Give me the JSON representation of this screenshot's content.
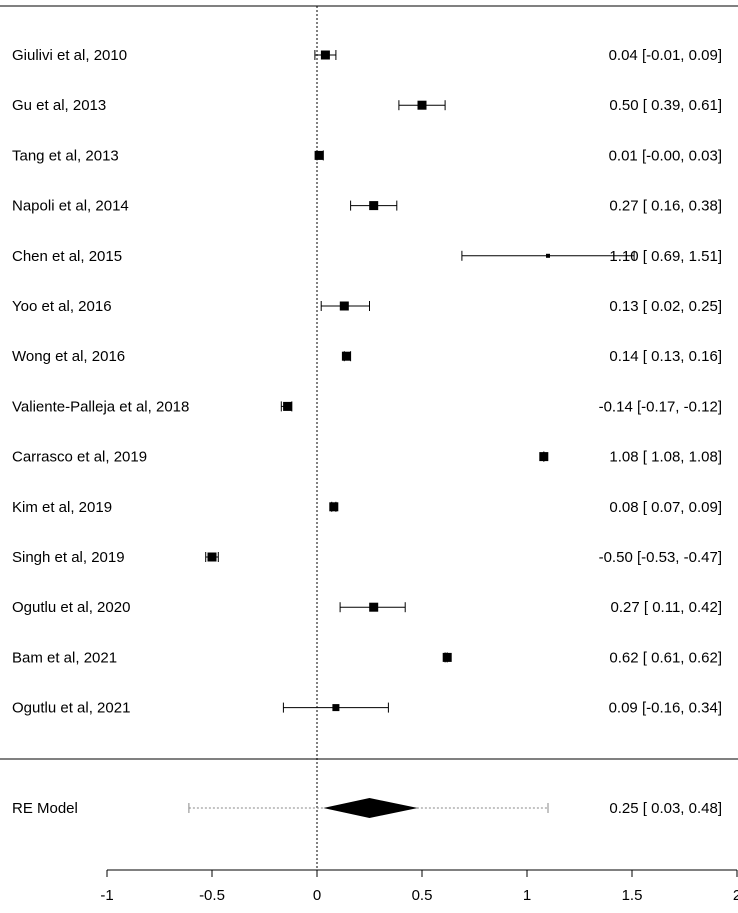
{
  "chart_data": {
    "type": "forest",
    "studies": [
      {
        "label": "Giulivi  et al, 2010",
        "estimate": 0.04,
        "ci": [
          -0.01,
          0.09
        ],
        "ci_text": "0.04 [-0.01,  0.09]",
        "weight": 2
      },
      {
        "label": "Gu et al, 2013",
        "estimate": 0.5,
        "ci": [
          0.39,
          0.61
        ],
        "ci_text": "0.50 [ 0.39,  0.61]",
        "weight": 2
      },
      {
        "label": "Tang et al, 2013",
        "estimate": 0.01,
        "ci": [
          0.0,
          0.03
        ],
        "ci_text": "0.01 [-0.00,  0.03]",
        "weight": 2
      },
      {
        "label": "Napoli  et al, 2014",
        "estimate": 0.27,
        "ci": [
          0.16,
          0.38
        ],
        "ci_text": "0.27 [ 0.16,  0.38]",
        "weight": 2
      },
      {
        "label": "Chen et al, 2015",
        "estimate": 1.1,
        "ci": [
          0.69,
          1.51
        ],
        "ci_text": "1.10 [ 0.69,  1.51]",
        "weight": 0.3
      },
      {
        "label": "Yoo et al, 2016",
        "estimate": 0.13,
        "ci": [
          0.02,
          0.25
        ],
        "ci_text": "0.13 [ 0.02,  0.25]",
        "weight": 2
      },
      {
        "label": "Wong et al, 2016",
        "estimate": 0.14,
        "ci": [
          0.13,
          0.16
        ],
        "ci_text": "0.14 [ 0.13,  0.16]",
        "weight": 2
      },
      {
        "label": "Valiente-Palleja  et al, 2018",
        "estimate": -0.14,
        "ci": [
          -0.17,
          -0.12
        ],
        "ci_text": "-0.14 [-0.17, -0.12]",
        "weight": 2
      },
      {
        "label": "Carrasco et al, 2019",
        "estimate": 1.08,
        "ci": [
          1.08,
          1.08
        ],
        "ci_text": "1.08 [ 1.08,  1.08]",
        "weight": 2
      },
      {
        "label": "Kim et  al, 2019",
        "estimate": 0.08,
        "ci": [
          0.07,
          0.09
        ],
        "ci_text": "0.08 [ 0.07,  0.09]",
        "weight": 2
      },
      {
        "label": "Singh et al, 2019",
        "estimate": -0.5,
        "ci": [
          -0.53,
          -0.47
        ],
        "ci_text": "-0.50 [-0.53, -0.47]",
        "weight": 2
      },
      {
        "label": "Ogutlu et al, 2020",
        "estimate": 0.27,
        "ci": [
          0.11,
          0.42
        ],
        "ci_text": "0.27 [ 0.11,  0.42]",
        "weight": 2
      },
      {
        "label": "Bam et  al, 2021",
        "estimate": 0.62,
        "ci": [
          0.61,
          0.62
        ],
        "ci_text": "0.62 [ 0.61,  0.62]",
        "weight": 2
      },
      {
        "label": "Ogutlu  et al, 2021",
        "estimate": 0.09,
        "ci": [
          -0.16,
          0.34
        ],
        "ci_text": "0.09 [-0.16,  0.34]",
        "weight": 1
      }
    ],
    "summary": {
      "label": "RE Model",
      "estimate": 0.25,
      "ci": [
        0.03,
        0.48
      ],
      "prediction_interval": [
        -0.61,
        1.1
      ],
      "ci_text": "0.25 [ 0.03,  0.48]"
    },
    "x_axis": {
      "ticks": [
        -1,
        -0.5,
        0,
        0.5,
        1,
        1.5,
        2
      ],
      "tick_labels": [
        "-1",
        "-0.5",
        "0",
        "0.5",
        "1",
        "1.5",
        "2"
      ],
      "range": [
        -1,
        2
      ]
    },
    "reference_line": 0
  }
}
